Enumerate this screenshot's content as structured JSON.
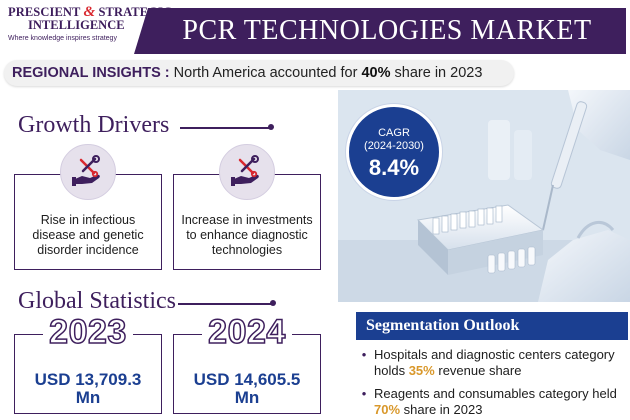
{
  "logo": {
    "line1a": "PRESCIENT",
    "amp": "&",
    "line1b": "STRATEGIC",
    "line2": "INTELLIGENCE",
    "tagline": "Where knowledge inspires strategy"
  },
  "title": "PCR TECHNOLOGIES MARKET",
  "regional": {
    "label": "REGIONAL INSIGHTS :",
    "text_before": "North America accounted for",
    "share": "40%",
    "text_after": "share in 2023"
  },
  "growth_drivers": {
    "heading": "Growth Drivers",
    "items": [
      {
        "icon": "hand-wrench-screwdriver-icon",
        "text": "Rise in infectious disease and genetic disorder incidence"
      },
      {
        "icon": "hand-wrench-screwdriver-icon",
        "text": "Increase in investments to enhance diagnostic technologies"
      }
    ]
  },
  "global_statistics": {
    "heading": "Global Statistics",
    "items": [
      {
        "year": "2023",
        "value": "USD 13,709.3 Mn"
      },
      {
        "year": "2024",
        "value": "USD 14,605.5 Mn"
      }
    ]
  },
  "cagr": {
    "label": "CAGR",
    "period": "(2024-2030)",
    "value": "8.4%"
  },
  "segmentation": {
    "heading": "Segmentation Outlook",
    "items": [
      {
        "before": "Hospitals and diagnostic centers category holds",
        "highlight": "35%",
        "after": "revenue share"
      },
      {
        "before": "Reagents and consumables category held",
        "highlight": "70%",
        "after": "share in 2023"
      }
    ]
  },
  "colors": {
    "brand_purple": "#3e1f5d",
    "accent_blue": "#1b3f91",
    "highlight_orange": "#d9982b",
    "logo_red": "#d9282f"
  }
}
